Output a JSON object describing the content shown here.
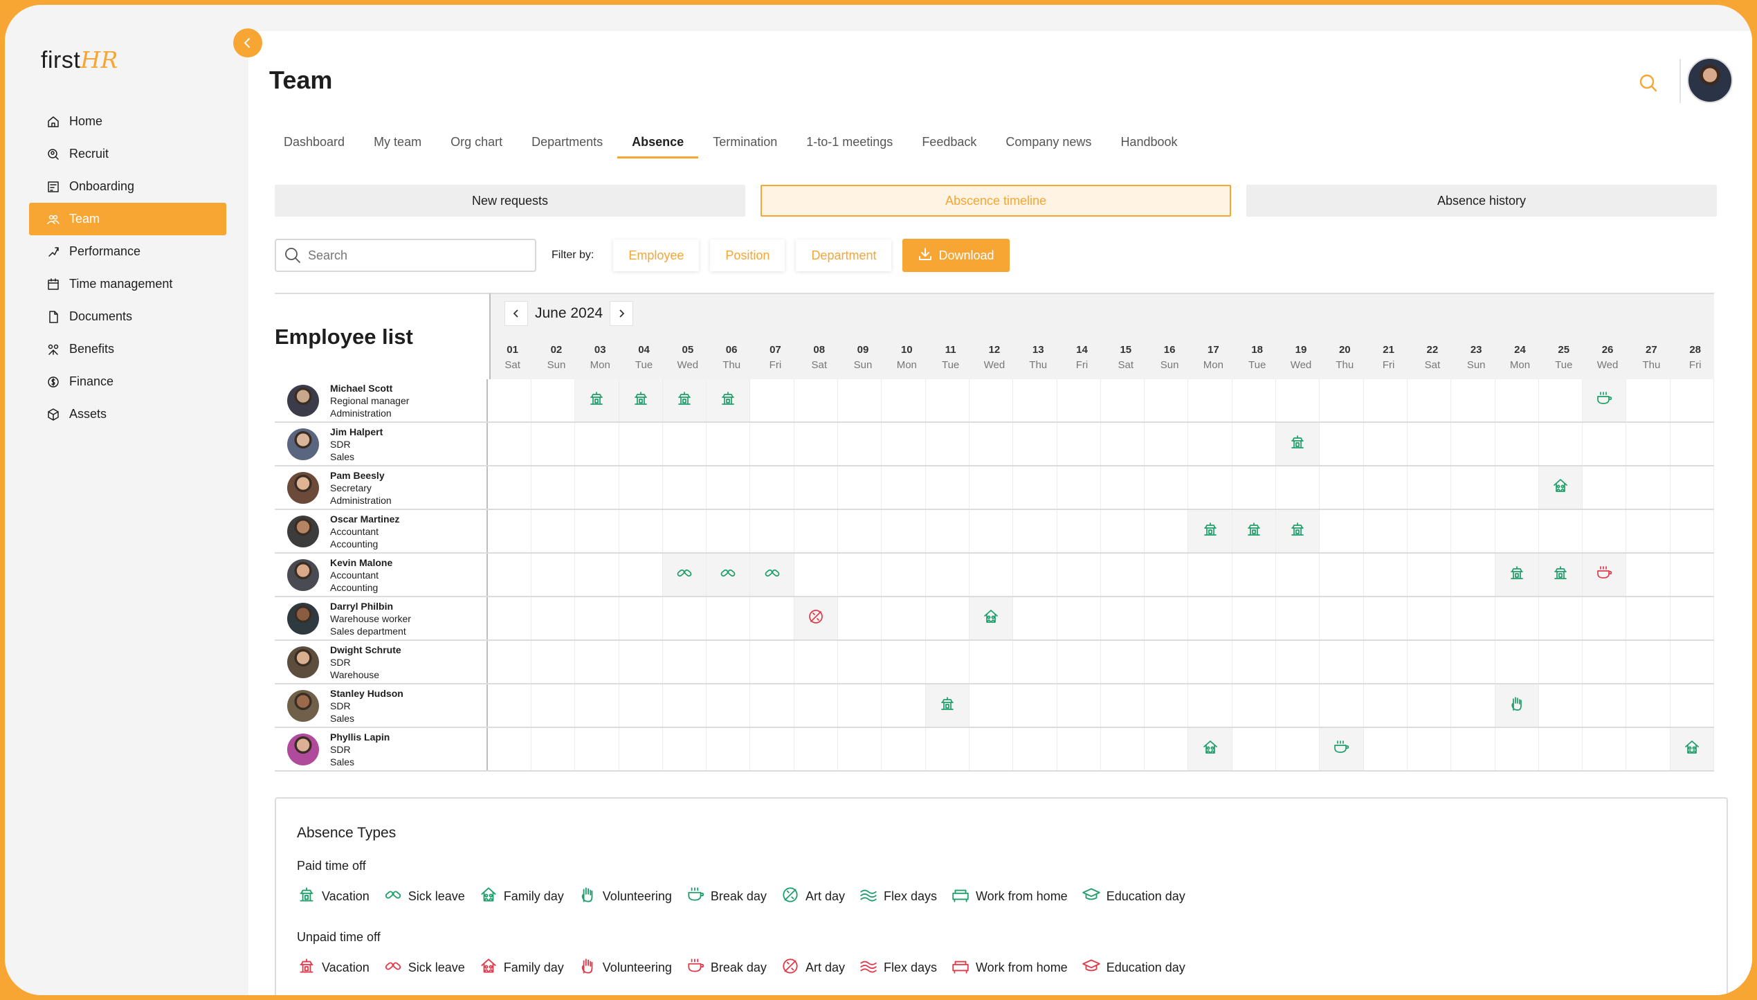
{
  "colors": {
    "accent": "#f7a533",
    "paid": "#1e9e6a",
    "unpaid": "#e03a4a"
  },
  "logo": {
    "first": "first",
    "hr": "HR"
  },
  "sidebar": {
    "items": [
      {
        "label": "Home",
        "icon": "home-icon",
        "active": false
      },
      {
        "label": "Recruit",
        "icon": "recruit-icon",
        "active": false
      },
      {
        "label": "Onboarding",
        "icon": "onboarding-icon",
        "active": false
      },
      {
        "label": "Team",
        "icon": "team-icon",
        "active": true
      },
      {
        "label": "Performance",
        "icon": "performance-icon",
        "active": false
      },
      {
        "label": "Time management",
        "icon": "calendar-icon",
        "active": false
      },
      {
        "label": "Documents",
        "icon": "document-icon",
        "active": false
      },
      {
        "label": "Benefits",
        "icon": "benefits-icon",
        "active": false
      },
      {
        "label": "Finance",
        "icon": "finance-icon",
        "active": false
      },
      {
        "label": "Assets",
        "icon": "box-icon",
        "active": false
      }
    ]
  },
  "header": {
    "title": "Team"
  },
  "tabs": [
    {
      "label": "Dashboard",
      "active": false
    },
    {
      "label": "My team",
      "active": false
    },
    {
      "label": "Org chart",
      "active": false
    },
    {
      "label": "Departments",
      "active": false
    },
    {
      "label": "Absence",
      "active": true
    },
    {
      "label": "Termination",
      "active": false
    },
    {
      "label": "1-to-1 meetings",
      "active": false
    },
    {
      "label": "Feedback",
      "active": false
    },
    {
      "label": "Company news",
      "active": false
    },
    {
      "label": "Handbook",
      "active": false
    }
  ],
  "subtabs": [
    {
      "label": "New requests",
      "active": false
    },
    {
      "label": "Abscence timeline",
      "active": true
    },
    {
      "label": "Absence history",
      "active": false
    }
  ],
  "toolbar": {
    "search_placeholder": "Search",
    "filter_label": "Filter by:",
    "filters": [
      "Employee",
      "Position",
      "Department"
    ],
    "download_label": "Download"
  },
  "calendar": {
    "employee_list_title": "Employee list",
    "month": "June 2024",
    "days": [
      {
        "d": "01",
        "w": "Sat"
      },
      {
        "d": "02",
        "w": "Sun"
      },
      {
        "d": "03",
        "w": "Mon"
      },
      {
        "d": "04",
        "w": "Tue"
      },
      {
        "d": "05",
        "w": "Wed"
      },
      {
        "d": "06",
        "w": "Thu"
      },
      {
        "d": "07",
        "w": "Fri"
      },
      {
        "d": "08",
        "w": "Sat"
      },
      {
        "d": "09",
        "w": "Sun"
      },
      {
        "d": "10",
        "w": "Mon"
      },
      {
        "d": "11",
        "w": "Tue"
      },
      {
        "d": "12",
        "w": "Wed"
      },
      {
        "d": "13",
        "w": "Thu"
      },
      {
        "d": "14",
        "w": "Fri"
      },
      {
        "d": "15",
        "w": "Sat"
      },
      {
        "d": "16",
        "w": "Sun"
      },
      {
        "d": "17",
        "w": "Mon"
      },
      {
        "d": "18",
        "w": "Tue"
      },
      {
        "d": "19",
        "w": "Wed"
      },
      {
        "d": "20",
        "w": "Thu"
      },
      {
        "d": "21",
        "w": "Fri"
      },
      {
        "d": "22",
        "w": "Sat"
      },
      {
        "d": "23",
        "w": "Sun"
      },
      {
        "d": "24",
        "w": "Mon"
      },
      {
        "d": "25",
        "w": "Tue"
      },
      {
        "d": "26",
        "w": "Wed"
      },
      {
        "d": "27",
        "w": "Thu"
      },
      {
        "d": "28",
        "w": "Fri"
      }
    ],
    "employees": [
      {
        "name": "Michael Scott",
        "role": "Regional manager",
        "dept": "Administration",
        "absences": [
          {
            "day": "03",
            "type": "vacation",
            "paid": true
          },
          {
            "day": "04",
            "type": "vacation",
            "paid": true
          },
          {
            "day": "05",
            "type": "vacation",
            "paid": true
          },
          {
            "day": "06",
            "type": "vacation",
            "paid": true
          },
          {
            "day": "26",
            "type": "break",
            "paid": true
          }
        ]
      },
      {
        "name": "Jim Halpert",
        "role": "SDR",
        "dept": "Sales",
        "absences": [
          {
            "day": "19",
            "type": "vacation",
            "paid": true
          }
        ]
      },
      {
        "name": "Pam Beesly",
        "role": "Secretary",
        "dept": "Administration",
        "absences": [
          {
            "day": "25",
            "type": "family",
            "paid": true
          }
        ]
      },
      {
        "name": "Oscar Martinez",
        "role": "Accountant",
        "dept": "Accounting",
        "absences": [
          {
            "day": "17",
            "type": "vacation",
            "paid": true
          },
          {
            "day": "18",
            "type": "vacation",
            "paid": true
          },
          {
            "day": "19",
            "type": "vacation",
            "paid": true
          }
        ]
      },
      {
        "name": "Kevin Malone",
        "role": "Accountant",
        "dept": "Accounting",
        "absences": [
          {
            "day": "05",
            "type": "sick",
            "paid": true
          },
          {
            "day": "06",
            "type": "sick",
            "paid": true
          },
          {
            "day": "07",
            "type": "sick",
            "paid": true
          },
          {
            "day": "24",
            "type": "vacation",
            "paid": true
          },
          {
            "day": "25",
            "type": "vacation",
            "paid": true
          },
          {
            "day": "26",
            "type": "break",
            "paid": false
          }
        ]
      },
      {
        "name": "Darryl Philbin",
        "role": "Warehouse worker",
        "dept": "Sales department",
        "absences": [
          {
            "day": "08",
            "type": "art",
            "paid": false
          },
          {
            "day": "12",
            "type": "family",
            "paid": true
          }
        ]
      },
      {
        "name": "Dwight Schrute",
        "role": "SDR",
        "dept": "Warehouse",
        "absences": []
      },
      {
        "name": "Stanley Hudson",
        "role": "SDR",
        "dept": "Sales",
        "absences": [
          {
            "day": "11",
            "type": "vacation",
            "paid": true
          },
          {
            "day": "24",
            "type": "volunteer",
            "paid": true
          }
        ]
      },
      {
        "name": "Phyllis Lapin",
        "role": "SDR",
        "dept": "Sales",
        "absences": [
          {
            "day": "17",
            "type": "family",
            "paid": true
          },
          {
            "day": "20",
            "type": "break",
            "paid": true
          },
          {
            "day": "28",
            "type": "family",
            "paid": true
          }
        ]
      }
    ]
  },
  "legend": {
    "title": "Absence Types",
    "paid_title": "Paid time off",
    "unpaid_title": "Unpaid time off",
    "types": [
      {
        "key": "vacation",
        "label": "Vacation"
      },
      {
        "key": "sick",
        "label": "Sick leave"
      },
      {
        "key": "family",
        "label": "Family day"
      },
      {
        "key": "volunteer",
        "label": "Volunteering"
      },
      {
        "key": "break",
        "label": "Break day"
      },
      {
        "key": "art",
        "label": "Art day"
      },
      {
        "key": "flex",
        "label": "Flex days"
      },
      {
        "key": "wfh",
        "label": "Work from home"
      },
      {
        "key": "education",
        "label": "Education day"
      }
    ]
  }
}
